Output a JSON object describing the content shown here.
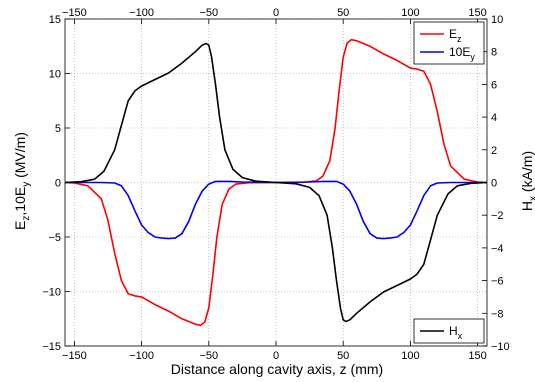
{
  "chart_data": {
    "type": "line",
    "xlabel": "Distance along cavity axis, z (mm)",
    "ylabel_left": "E_z,10E_y (MV/m)",
    "ylabel_right": "H_x (kA/m)",
    "xlim": [
      -157,
      157
    ],
    "ylim_left": [
      -15,
      15
    ],
    "ylim_right": [
      -10,
      10
    ],
    "x_ticks": [
      -150,
      -100,
      -50,
      0,
      50,
      100,
      150
    ],
    "y_ticks_left": [
      -15,
      -10,
      -5,
      0,
      5,
      10,
      15
    ],
    "y_ticks_right": [
      -10,
      -8,
      -6,
      -4,
      -2,
      0,
      2,
      4,
      6,
      8,
      10
    ],
    "grid": true,
    "legends": [
      {
        "location": "top-right",
        "entries": [
          {
            "series": 0,
            "base": "E",
            "sub": "z",
            "color": "#ff0000"
          },
          {
            "series": 1,
            "base": "10E",
            "sub": "y",
            "color": "#0000ff"
          }
        ]
      },
      {
        "location": "bottom-right",
        "entries": [
          {
            "series": 2,
            "base": "H",
            "sub": "x",
            "color": "#000000"
          }
        ]
      }
    ],
    "series": [
      {
        "color": "#ff0000",
        "axis": "left",
        "points": [
          [
            -157,
            0
          ],
          [
            -150,
            -0.05
          ],
          [
            -140,
            -0.3
          ],
          [
            -130,
            -1.5
          ],
          [
            -125,
            -3.5
          ],
          [
            -120,
            -6.5
          ],
          [
            -115,
            -9
          ],
          [
            -110,
            -10.2
          ],
          [
            -105,
            -10.4
          ],
          [
            -100,
            -10.5
          ],
          [
            -90,
            -11.2
          ],
          [
            -80,
            -11.8
          ],
          [
            -70,
            -12.5
          ],
          [
            -60,
            -13
          ],
          [
            -56,
            -13.1
          ],
          [
            -53,
            -12.8
          ],
          [
            -50,
            -11.5
          ],
          [
            -47,
            -8.5
          ],
          [
            -44,
            -5
          ],
          [
            -40,
            -2
          ],
          [
            -35,
            -0.6
          ],
          [
            -30,
            -0.15
          ],
          [
            -20,
            -0.02
          ],
          [
            0,
            0
          ],
          [
            20,
            0.02
          ],
          [
            30,
            0.15
          ],
          [
            35,
            0.6
          ],
          [
            40,
            2
          ],
          [
            44,
            5
          ],
          [
            47,
            8.5
          ],
          [
            50,
            11.5
          ],
          [
            53,
            12.8
          ],
          [
            56,
            13.1
          ],
          [
            60,
            13
          ],
          [
            70,
            12.5
          ],
          [
            80,
            11.8
          ],
          [
            90,
            11.2
          ],
          [
            100,
            10.5
          ],
          [
            105,
            10.4
          ],
          [
            110,
            10.2
          ],
          [
            115,
            9
          ],
          [
            120,
            6.5
          ],
          [
            125,
            3.5
          ],
          [
            130,
            1.5
          ],
          [
            140,
            0.3
          ],
          [
            150,
            0.05
          ],
          [
            157,
            0
          ]
        ]
      },
      {
        "color": "#0000ff",
        "axis": "left",
        "points": [
          [
            -157,
            0
          ],
          [
            -130,
            0
          ],
          [
            -120,
            -0.05
          ],
          [
            -115,
            -0.3
          ],
          [
            -110,
            -1.2
          ],
          [
            -105,
            -2.6
          ],
          [
            -100,
            -3.9
          ],
          [
            -95,
            -4.6
          ],
          [
            -90,
            -5
          ],
          [
            -85,
            -5.1
          ],
          [
            -80,
            -5.15
          ],
          [
            -75,
            -5.1
          ],
          [
            -70,
            -4.7
          ],
          [
            -65,
            -3.6
          ],
          [
            -60,
            -2
          ],
          [
            -55,
            -0.8
          ],
          [
            -50,
            -0.15
          ],
          [
            -45,
            0.1
          ],
          [
            -35,
            0.1
          ],
          [
            -25,
            0.05
          ],
          [
            0,
            0
          ],
          [
            25,
            0.05
          ],
          [
            35,
            0.1
          ],
          [
            45,
            0.1
          ],
          [
            50,
            -0.15
          ],
          [
            55,
            -0.8
          ],
          [
            60,
            -2
          ],
          [
            65,
            -3.6
          ],
          [
            70,
            -4.7
          ],
          [
            75,
            -5.1
          ],
          [
            80,
            -5.15
          ],
          [
            85,
            -5.1
          ],
          [
            90,
            -5
          ],
          [
            95,
            -4.6
          ],
          [
            100,
            -3.9
          ],
          [
            105,
            -2.6
          ],
          [
            110,
            -1.2
          ],
          [
            115,
            -0.3
          ],
          [
            120,
            -0.05
          ],
          [
            130,
            0
          ],
          [
            157,
            0
          ]
        ]
      },
      {
        "color": "#000000",
        "axis": "right",
        "points": [
          [
            -157,
            0
          ],
          [
            -145,
            0.05
          ],
          [
            -135,
            0.2
          ],
          [
            -128,
            0.7
          ],
          [
            -120,
            2
          ],
          [
            -115,
            3.5
          ],
          [
            -110,
            5
          ],
          [
            -105,
            5.6
          ],
          [
            -100,
            5.9
          ],
          [
            -90,
            6.3
          ],
          [
            -80,
            6.7
          ],
          [
            -70,
            7.3
          ],
          [
            -60,
            8
          ],
          [
            -55,
            8.4
          ],
          [
            -52,
            8.5
          ],
          [
            -50,
            8.4
          ],
          [
            -48,
            7.7
          ],
          [
            -45,
            6
          ],
          [
            -42,
            4
          ],
          [
            -38,
            2
          ],
          [
            -32,
            0.8
          ],
          [
            -25,
            0.3
          ],
          [
            -15,
            0.08
          ],
          [
            0,
            0
          ],
          [
            15,
            -0.08
          ],
          [
            25,
            -0.3
          ],
          [
            32,
            -0.8
          ],
          [
            38,
            -2
          ],
          [
            42,
            -4
          ],
          [
            45,
            -6
          ],
          [
            48,
            -7.7
          ],
          [
            50,
            -8.4
          ],
          [
            52,
            -8.5
          ],
          [
            55,
            -8.4
          ],
          [
            60,
            -8
          ],
          [
            70,
            -7.3
          ],
          [
            80,
            -6.7
          ],
          [
            90,
            -6.3
          ],
          [
            100,
            -5.9
          ],
          [
            105,
            -5.6
          ],
          [
            110,
            -5
          ],
          [
            115,
            -3.5
          ],
          [
            120,
            -2
          ],
          [
            128,
            -0.7
          ],
          [
            135,
            -0.2
          ],
          [
            145,
            -0.05
          ],
          [
            157,
            0
          ]
        ]
      }
    ]
  }
}
